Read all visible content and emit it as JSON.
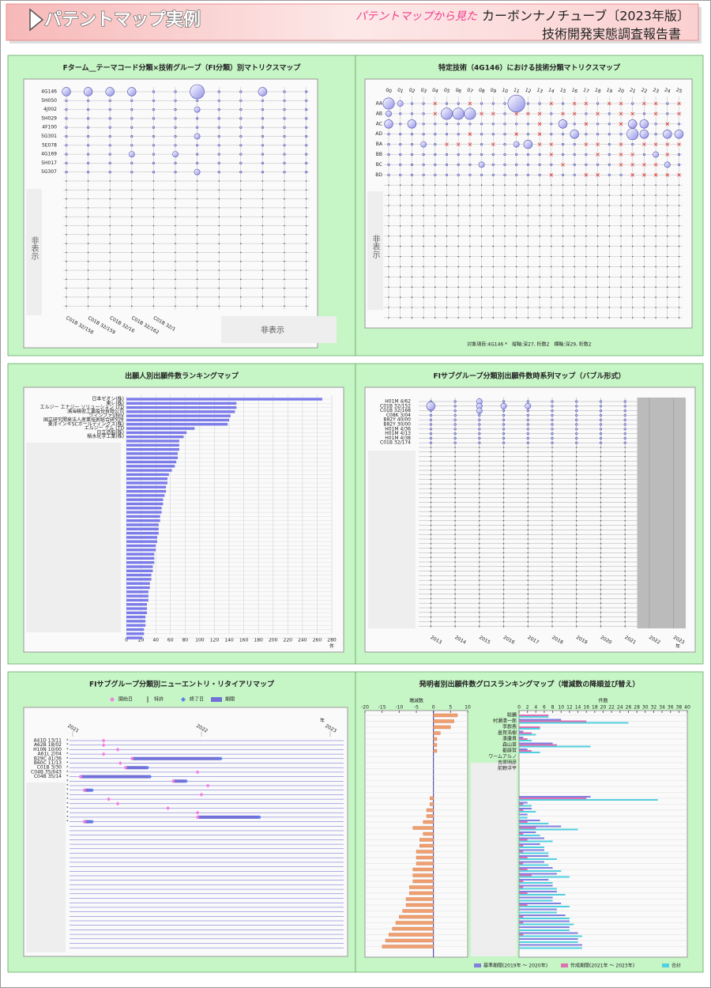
{
  "header": {
    "title": "パテントマップ実例",
    "subtitle_lead": "パテントマップから見た",
    "subtitle": "カーボンナノチューブ〔2023年版〕",
    "report": "技術開発実態調査報告書"
  },
  "panels": [
    {
      "type": "matrix",
      "title": "Fターム__テーマコード分類×技術グループ（FI分類）別マトリクスマップ",
      "rows": [
        "4G146",
        "5H050",
        "4J002",
        "5H029",
        "4F100",
        "5G301",
        "5E078",
        "4G169",
        "5H017",
        "5G307"
      ],
      "columns": [
        "C01B 32/158",
        "C01B 32/159",
        "C01B 32/16",
        "C01B 32/162",
        "C01B 32/1"
      ],
      "hidden_rows_label": "非表示",
      "hidden_columns_label": "非表示",
      "values": [
        [
          3,
          3,
          3,
          3,
          1,
          1,
          5,
          1,
          1,
          3,
          1,
          1
        ],
        [
          1,
          1,
          1,
          1,
          1,
          1,
          1,
          1,
          1,
          1,
          1,
          1
        ],
        [
          1,
          1,
          1,
          1,
          1,
          1,
          2,
          1,
          1,
          1,
          1,
          1
        ],
        [
          1,
          1,
          1,
          1,
          1,
          1,
          1,
          1,
          1,
          1,
          1,
          1
        ],
        [
          1,
          1,
          1,
          1,
          1,
          1,
          1,
          1,
          1,
          1,
          1,
          1
        ],
        [
          1,
          1,
          1,
          1,
          1,
          1,
          2,
          1,
          1,
          1,
          1,
          1
        ],
        [
          1,
          1,
          1,
          1,
          1,
          1,
          1,
          1,
          1,
          1,
          1,
          1
        ],
        [
          1,
          1,
          1,
          2,
          1,
          2,
          1,
          1,
          1,
          1,
          1,
          1
        ],
        [
          1,
          1,
          1,
          1,
          1,
          1,
          1,
          1,
          1,
          1,
          1,
          1
        ],
        [
          1,
          1,
          1,
          1,
          1,
          1,
          2,
          1,
          1,
          1,
          1,
          1
        ]
      ]
    },
    {
      "type": "matrix-cross",
      "title": "特定技術（4G146）における技術分類マトリクスマップ",
      "columns": [
        "00",
        "01",
        "02",
        "03",
        "04",
        "05",
        "06",
        "07",
        "08",
        "09",
        "10",
        "11",
        "12",
        "13",
        "14",
        "15",
        "16",
        "17",
        "18",
        "19",
        "20",
        "21",
        "22",
        "23",
        "24",
        "25"
      ],
      "rows": [
        "AA",
        "AB",
        "AC",
        "AD",
        "BA",
        "BB",
        "BC",
        "BD"
      ],
      "hidden_rows_label": "非表示",
      "footer": "対象項目:4G146 *　縦軸:深27, 桁数2　横軸:深29, 桁数2",
      "values": [
        [
          4,
          2,
          1,
          1,
          0,
          1,
          1,
          0,
          1,
          1,
          1,
          6,
          1,
          1,
          0,
          1,
          0,
          0,
          1,
          0,
          0,
          1,
          0,
          0,
          1,
          0
        ],
        [
          2,
          1,
          1,
          1,
          0,
          4,
          4,
          4,
          0,
          0,
          1,
          0,
          0,
          0,
          1,
          0,
          0,
          1,
          0,
          1,
          0,
          0,
          1,
          0,
          1,
          0
        ],
        [
          3,
          1,
          3,
          1,
          1,
          1,
          1,
          1,
          1,
          1,
          1,
          1,
          1,
          0,
          1,
          3,
          1,
          0,
          1,
          1,
          0,
          3,
          3,
          1,
          0,
          1
        ],
        [
          1,
          1,
          1,
          1,
          1,
          1,
          1,
          0,
          1,
          1,
          1,
          0,
          1,
          0,
          1,
          1,
          3,
          1,
          1,
          1,
          1,
          4,
          3,
          1,
          3,
          3
        ],
        [
          1,
          1,
          1,
          2,
          1,
          0,
          0,
          0,
          1,
          0,
          1,
          2,
          3,
          0,
          0,
          1,
          1,
          0,
          0,
          1,
          0,
          1,
          0,
          0,
          0,
          0
        ],
        [
          1,
          1,
          1,
          1,
          1,
          1,
          1,
          1,
          1,
          1,
          1,
          1,
          1,
          1,
          0,
          1,
          1,
          1,
          0,
          1,
          0,
          0,
          1,
          2,
          0,
          1
        ],
        [
          1,
          1,
          1,
          1,
          1,
          1,
          1,
          1,
          2,
          1,
          1,
          1,
          1,
          1,
          1,
          0,
          1,
          1,
          1,
          1,
          0,
          0,
          0,
          0,
          2,
          1
        ],
        [
          1,
          1,
          1,
          1,
          1,
          1,
          1,
          1,
          1,
          1,
          1,
          1,
          1,
          1,
          0,
          1,
          1,
          0,
          0,
          1,
          1,
          0,
          0,
          0,
          0,
          0
        ]
      ]
    },
    {
      "type": "hbar",
      "title": "出願人別出願件数ランキングマップ",
      "categories": [
        "日本ゼオン(株)",
        "東レ(株)",
        "エルジー エナジー ソリューション LTD",
        "鴻海精密工業股份有限公司",
        "ツィンファUNIV",
        "国立研究開発法人産業技術総合研究所",
        "東洋インキSCホールディングス(株)",
        "エルジー ケム LTD",
        "日立造船(株)",
        "積水化学工業(株)",
        null,
        null,
        null,
        null,
        null,
        null,
        null,
        null,
        null,
        null,
        null,
        null,
        null,
        null,
        null,
        null,
        null,
        null,
        null,
        null,
        null,
        null,
        null,
        null,
        null,
        null,
        null,
        null,
        null,
        null,
        null,
        null,
        null,
        null,
        null,
        null,
        null,
        null,
        null,
        null,
        null,
        null,
        null,
        null,
        null,
        null,
        null,
        null
      ],
      "values": [
        267,
        150,
        150,
        148,
        142,
        140,
        138,
        93,
        82,
        78,
        72,
        72,
        72,
        70,
        70,
        68,
        66,
        62,
        58,
        56,
        56,
        54,
        54,
        52,
        50,
        50,
        48,
        48,
        46,
        46,
        44,
        44,
        44,
        42,
        42,
        40,
        40,
        38,
        38,
        38,
        36,
        36,
        34,
        34,
        32,
        32,
        30,
        30,
        30,
        28,
        28,
        28,
        26,
        26,
        26,
        24,
        24,
        22
      ],
      "color": "#7b7bea",
      "xlim": [
        0,
        280
      ],
      "xticks": [
        0,
        20,
        40,
        60,
        80,
        100,
        120,
        140,
        160,
        180,
        200,
        220,
        240,
        260,
        280
      ],
      "xlabel": "件"
    },
    {
      "type": "bubble-timeline",
      "title": "FIサブグループ分類別出願件数時系列マップ（バブル形式）",
      "rows": [
        "H01M 4/62",
        "C01B 32/152",
        "C01B 32/168",
        "C08K 3/04",
        "B82Y 40/00",
        "B82Y 30/00",
        "H01M 4/36",
        "H01M 4/13",
        "H01M 4/38",
        "C01B 32/174"
      ],
      "xticks": [
        2013,
        2014,
        2015,
        2016,
        2017,
        2018,
        2019,
        2020,
        2021,
        2022,
        2023
      ],
      "xlim": [
        2012.5,
        2023.5
      ],
      "xlabel": "年",
      "shaded_from": 2021.5,
      "values": [
        [
          1,
          1,
          2,
          1,
          1,
          1,
          1,
          1,
          1
        ],
        [
          3,
          1,
          2,
          2,
          2,
          1,
          1,
          1,
          1
        ],
        [
          1,
          1,
          2,
          1,
          1,
          1,
          1,
          1,
          1
        ],
        [
          1,
          1,
          1,
          1,
          1,
          1,
          1,
          1,
          1
        ],
        [
          1,
          1,
          1,
          1,
          1,
          1,
          1,
          1,
          1
        ],
        [
          1,
          1,
          1,
          1,
          1,
          1,
          1,
          1,
          1
        ],
        [
          1,
          1,
          1,
          1,
          1,
          1,
          1,
          1,
          1
        ],
        [
          1,
          1,
          1,
          1,
          1,
          1,
          1,
          1,
          1
        ],
        [
          1,
          1,
          1,
          1,
          1,
          1,
          1,
          1,
          1
        ],
        [
          1,
          1,
          1,
          1,
          1,
          1,
          1,
          1,
          1
        ]
      ]
    },
    {
      "type": "gantt",
      "title": "FIサブグループ分類別ニューエントリ・リタイアリマップ",
      "legend": [
        "開始日",
        "特許",
        "終了日",
        "期間"
      ],
      "xticks": [
        2021,
        2022,
        2023
      ],
      "xlim": [
        2020.96,
        2023.03
      ],
      "xlabel": "年",
      "rows": [
        "A41D 13/11",
        "A62B 18/02",
        "H10N 10/00",
        "A61L 2/04",
        "B29C 41/36",
        "B60C 11/13",
        "C01B 3/30",
        "C04B 35/043",
        "C04B 35/14",
        null,
        null,
        null,
        null,
        null,
        null,
        null,
        null,
        null,
        null
      ],
      "start": [
        2021.24,
        2021.24,
        2021.35,
        2021.24,
        2021.46,
        2021.37,
        2021.41,
        2021.97,
        2021.06,
        2021.78,
        2022.05,
        2021.09,
        2022.0,
        2021.28,
        2021.35,
        2021.74,
        2021.97,
        2021.97,
        2021.09
      ],
      "end": [
        2021.24,
        2021.24,
        2021.35,
        2021.24,
        2022.15,
        2021.37,
        2021.58,
        2021.97,
        2021.6,
        2021.88,
        2022.05,
        2021.15,
        2022.0,
        2021.28,
        2021.35,
        2021.74,
        2021.97,
        2022.45,
        2021.15
      ]
    },
    {
      "type": "gross-ranking",
      "title": "発明者別出願件数グロスランキングマップ（増減数の降順並び替え）",
      "change_label": "増減数",
      "count_label": "件数",
      "categories": [
        "聡鵬",
        "村瀬清一郎",
        "李群燕",
        "畠賀浩樹",
        "湊康貴",
        "森山苗",
        "都薛賀",
        "ワームアルノ",
        "吉原明彦",
        "前野洋平",
        null,
        null,
        null,
        null,
        null,
        null,
        null,
        null,
        null,
        null,
        null,
        null,
        null,
        null,
        null,
        null,
        null,
        null,
        null,
        null,
        null,
        null,
        null,
        null,
        null,
        null,
        null,
        null,
        null,
        null
      ],
      "change": [
        7,
        6,
        5,
        2,
        1,
        1,
        1,
        0,
        0,
        0,
        0,
        0,
        0,
        0,
        -1,
        -1,
        -2,
        -2,
        -3,
        -6,
        -3,
        -4,
        -4,
        -5,
        -5,
        -5,
        -6,
        -6,
        -6,
        -7,
        -7,
        -8,
        -8,
        -9,
        -10,
        -11,
        -12,
        -13,
        -14,
        -15
      ],
      "change_color": "#f0a070",
      "change_xlim": [
        -20,
        10
      ],
      "change_xticks": [
        -20,
        -15,
        -10,
        -5,
        0,
        5,
        10
      ],
      "count_xlim": [
        0,
        40
      ],
      "count_xticks": [
        0,
        2,
        4,
        6,
        8,
        10,
        12,
        14,
        16,
        18,
        20,
        22,
        24,
        26,
        28,
        30,
        32,
        34,
        36,
        38,
        40
      ],
      "series": [
        {
          "name": "基準期間(2019年 ～ 2020年)",
          "color": "#8080e0",
          "values": [
            0,
            10,
            0,
            1,
            1,
            8,
            2,
            0,
            0,
            0,
            0,
            0,
            0,
            0,
            17,
            2,
            3,
            2,
            5,
            10,
            4,
            6,
            5,
            6,
            7,
            6,
            8,
            9,
            7,
            8,
            9,
            8,
            10,
            9,
            11,
            12,
            12,
            14,
            14,
            15
          ]
        },
        {
          "name": "作成期間(2021年 ～ 2023年)",
          "color": "#e070b0",
          "values": [
            7,
            16,
            5,
            3,
            2,
            9,
            3,
            0,
            0,
            0,
            0,
            0,
            0,
            0,
            16,
            1,
            1,
            0,
            2,
            4,
            1,
            2,
            1,
            1,
            2,
            1,
            2,
            3,
            1,
            1,
            2,
            0,
            2,
            0,
            1,
            1,
            0,
            1,
            0,
            0
          ]
        },
        {
          "name": "合計",
          "color": "#50d0e0",
          "values": [
            7,
            26,
            5,
            4,
            3,
            17,
            5,
            0,
            0,
            0,
            0,
            0,
            0,
            0,
            33,
            3,
            4,
            2,
            7,
            14,
            5,
            8,
            6,
            7,
            9,
            7,
            10,
            12,
            8,
            9,
            11,
            8,
            12,
            9,
            12,
            13,
            12,
            15,
            14,
            15
          ]
        }
      ]
    }
  ]
}
